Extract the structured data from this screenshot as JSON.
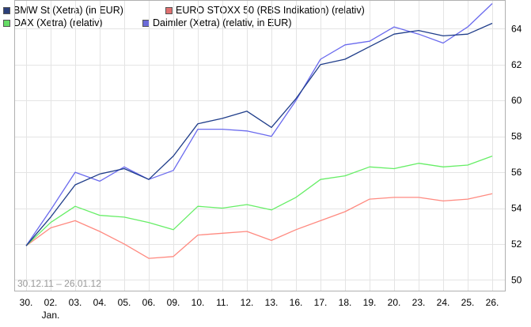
{
  "chart_data": {
    "type": "line",
    "title": "",
    "xlabel": "",
    "ylabel": "",
    "date_range": "30.12.11 – 26.01.12",
    "x_sub_label": "Jan.",
    "categories": [
      "30.",
      "02.",
      "03.",
      "04.",
      "05.",
      "06.",
      "09.",
      "10.",
      "11.",
      "12.",
      "13.",
      "16.",
      "17.",
      "18.",
      "19.",
      "20.",
      "23.",
      "24.",
      "25.",
      "26."
    ],
    "ylim": [
      49.4,
      65.6
    ],
    "yticks": [
      50,
      52,
      54,
      56,
      58,
      60,
      62,
      64
    ],
    "grid": true,
    "legend_position": "top-left",
    "series": [
      {
        "name": "BMW St (Xetra) (in EUR)",
        "color": "#1f3d8a",
        "swatch": "#2b3f7a",
        "values": [
          51.9,
          53.5,
          55.3,
          55.9,
          56.2,
          55.6,
          56.9,
          58.7,
          59.0,
          59.4,
          58.5,
          60.1,
          62.0,
          62.3,
          63.0,
          63.7,
          63.9,
          63.6,
          63.7,
          64.3
        ]
      },
      {
        "name": "EURO STOXX 50 (RBS Indikation) (relativ)",
        "color": "#ff8a80",
        "swatch": "#e07070",
        "values": [
          51.9,
          52.9,
          53.3,
          52.7,
          52.0,
          51.2,
          51.3,
          52.5,
          52.6,
          52.7,
          52.2,
          52.8,
          53.3,
          53.8,
          54.5,
          54.6,
          54.6,
          54.4,
          54.5,
          54.8
        ]
      },
      {
        "name": "DAX (Xetra) (relativ)",
        "color": "#66ee66",
        "swatch": "#66dd66",
        "values": [
          51.9,
          53.2,
          54.1,
          53.6,
          53.5,
          53.2,
          52.8,
          54.1,
          54.0,
          54.2,
          53.9,
          54.6,
          55.6,
          55.8,
          56.3,
          56.2,
          56.5,
          56.3,
          56.4,
          56.9
        ]
      },
      {
        "name": "Daimler (Xetra) (relativ, in EUR)",
        "color": "#6a6aee",
        "swatch": "#6a6ad8",
        "values": [
          51.9,
          53.9,
          56.0,
          55.5,
          56.3,
          55.6,
          56.1,
          58.4,
          58.4,
          58.3,
          58.0,
          60.0,
          62.3,
          63.1,
          63.3,
          64.1,
          63.7,
          63.2,
          64.1,
          65.4
        ]
      }
    ]
  }
}
